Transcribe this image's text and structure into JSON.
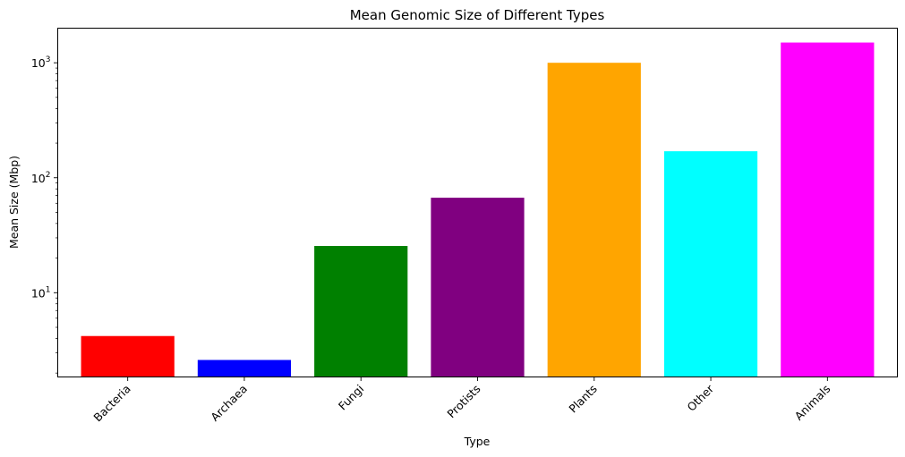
{
  "chart_data": {
    "type": "bar",
    "title": "Mean Genomic Size of Different Types",
    "xlabel": "Type",
    "ylabel": "Mean Size (Mbp)",
    "yscale": "log",
    "ylim": [
      1.85,
      2000
    ],
    "yticks": [
      10,
      100,
      1000
    ],
    "ytick_labels": [
      {
        "base": "10",
        "exp": "1"
      },
      {
        "base": "10",
        "exp": "2"
      },
      {
        "base": "10",
        "exp": "3"
      }
    ],
    "categories": [
      "Bacteria",
      "Archaea",
      "Fungi",
      "Protists",
      "Plants",
      "Other",
      "Animals"
    ],
    "values": [
      4.2,
      2.6,
      25.5,
      67,
      1000,
      170,
      1500
    ],
    "colors": [
      "#ff0000",
      "#0000ff",
      "#008000",
      "#800080",
      "#ffa500",
      "#00ffff",
      "#ff00ff"
    ],
    "tick_label_rotation_deg": 45,
    "grid": false,
    "legend": false
  }
}
